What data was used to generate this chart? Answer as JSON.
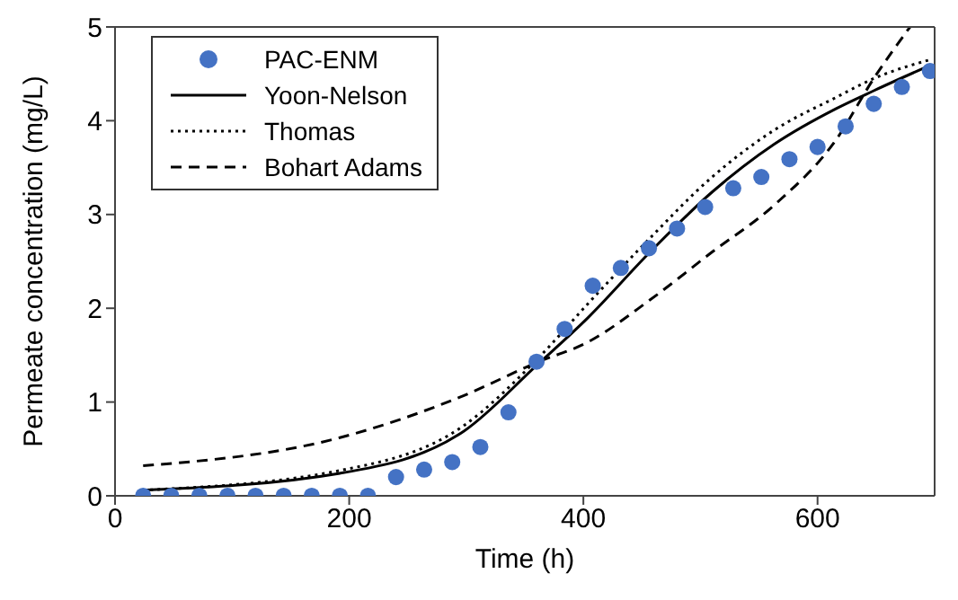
{
  "chart_data": {
    "type": "scatter",
    "xlabel": "Time (h)",
    "ylabel": "Permeate concentration (mg/L)",
    "xlim": [
      0,
      700
    ],
    "xticks": [
      0,
      200,
      400,
      600
    ],
    "ylim": [
      0,
      5
    ],
    "yticks": [
      0,
      1,
      2,
      3,
      4,
      5
    ],
    "grid": false,
    "legend": "top left",
    "series": [
      {
        "name": "PAC-ENM",
        "color": "#4472c4",
        "marker": "circle",
        "x": [
          24,
          48,
          72,
          96,
          120,
          144,
          168,
          192,
          216,
          240,
          264,
          288,
          312,
          336,
          360,
          384,
          408,
          432,
          456,
          480,
          504,
          528,
          552,
          576,
          600,
          624,
          648,
          672,
          696
        ],
        "values": [
          0,
          0,
          0,
          0,
          0,
          0,
          0,
          0,
          0,
          0.2,
          0.28,
          0.36,
          0.52,
          0.89,
          1.43,
          1.78,
          2.24,
          2.43,
          2.64,
          2.85,
          3.08,
          3.28,
          3.4,
          3.59,
          3.72,
          3.94,
          4.18,
          4.36,
          4.53
        ]
      },
      {
        "name": "Yoon-Nelson",
        "type": "line",
        "color": "#000000",
        "marker": "none",
        "line_style": "solid",
        "x": [
          24,
          192,
          298,
          360,
          404,
          457,
          510,
          563,
          616,
          648,
          696
        ],
        "values": [
          0.06,
          0.24,
          0.69,
          1.39,
          1.9,
          2.6,
          3.24,
          3.75,
          4.13,
          4.32,
          4.59
        ]
      },
      {
        "name": "Thomas",
        "type": "line",
        "color": "#000000",
        "marker": "none",
        "line_style": "dotted",
        "x": [
          24,
          192,
          298,
          360,
          404,
          457,
          510,
          563,
          616,
          648,
          696
        ],
        "values": [
          0.06,
          0.27,
          0.75,
          1.45,
          2.05,
          2.75,
          3.4,
          3.9,
          4.25,
          4.45,
          4.65
        ]
      },
      {
        "name": "Bohart Adams",
        "type": "line",
        "color": "#000000",
        "marker": "none",
        "line_style": "dashed",
        "x": [
          24,
          192,
          298,
          360,
          404,
          457,
          510,
          563,
          616,
          648,
          679
        ],
        "values": [
          0.32,
          0.62,
          1.07,
          1.42,
          1.64,
          2.09,
          2.6,
          3.1,
          3.8,
          4.45,
          5
        ]
      }
    ]
  }
}
